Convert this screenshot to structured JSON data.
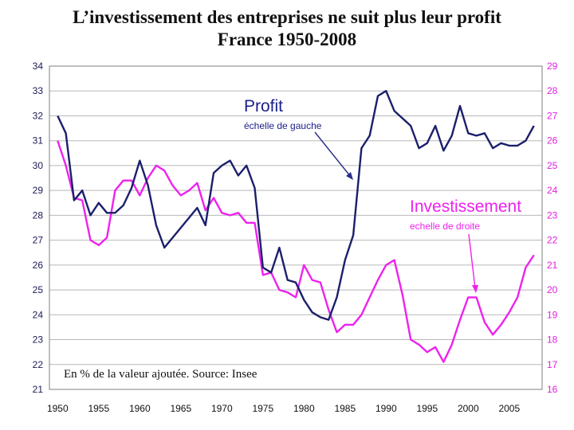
{
  "title_line1": "L’investissement des entreprises ne suit plus leur profit",
  "title_line2": "France 1950-2008",
  "colors": {
    "profit": "#1b1f6b",
    "investissement": "#ee22ee",
    "left_axis": "#1a1a55",
    "right_axis": "#e020e0",
    "grid": "#b8b8b8"
  },
  "chart_data": {
    "type": "line",
    "x_ticks": [
      1950,
      1955,
      1960,
      1965,
      1970,
      1975,
      1980,
      1985,
      1990,
      1995,
      2000,
      2005
    ],
    "x_tick_labels": [
      "1950",
      "1955",
      "1960",
      "1965",
      "1970",
      "1975",
      "1980",
      "1985",
      "1990",
      "1995",
      "2000",
      "2005"
    ],
    "xlim": [
      1949,
      2009
    ],
    "ylim_left": [
      21,
      34
    ],
    "ylim_right": [
      16,
      29
    ],
    "y_ticks_left": [
      21,
      22,
      23,
      24,
      25,
      26,
      27,
      28,
      29,
      30,
      31,
      32,
      33,
      34
    ],
    "y_ticks_right": [
      16,
      17,
      18,
      19,
      20,
      21,
      22,
      23,
      24,
      25,
      26,
      27,
      28,
      29
    ],
    "grid": "horizontal",
    "series": [
      {
        "name": "Profit",
        "axis": "left",
        "x": [
          1950,
          1951,
          1952,
          1953,
          1954,
          1955,
          1956,
          1957,
          1958,
          1959,
          1960,
          1961,
          1962,
          1963,
          1964,
          1965,
          1966,
          1967,
          1968,
          1969,
          1970,
          1971,
          1972,
          1973,
          1974,
          1975,
          1976,
          1977,
          1978,
          1979,
          1980,
          1981,
          1982,
          1983,
          1984,
          1985,
          1986,
          1987,
          1988,
          1989,
          1990,
          1991,
          1992,
          1993,
          1994,
          1995,
          1996,
          1997,
          1998,
          1999,
          2000,
          2001,
          2002,
          2003,
          2004,
          2005,
          2006,
          2007,
          2008
        ],
        "values": [
          32.0,
          31.3,
          28.6,
          29.0,
          28.0,
          28.5,
          28.1,
          28.1,
          28.4,
          29.1,
          30.2,
          29.2,
          27.6,
          26.7,
          27.1,
          27.5,
          27.9,
          28.3,
          27.6,
          29.7,
          30.0,
          30.2,
          29.6,
          30.0,
          29.1,
          25.9,
          25.7,
          26.7,
          25.4,
          25.3,
          24.6,
          24.1,
          23.9,
          23.8,
          24.7,
          26.2,
          27.2,
          30.7,
          31.2,
          32.8,
          33.0,
          32.2,
          31.9,
          31.6,
          30.7,
          30.9,
          31.6,
          30.6,
          31.2,
          32.4,
          31.3,
          31.2,
          31.3,
          30.7,
          30.9,
          30.8,
          30.8,
          31.0,
          31.6
        ]
      },
      {
        "name": "Investissement",
        "axis": "right",
        "x": [
          1950,
          1951,
          1952,
          1953,
          1954,
          1955,
          1956,
          1957,
          1958,
          1959,
          1960,
          1961,
          1962,
          1963,
          1964,
          1965,
          1966,
          1967,
          1968,
          1969,
          1970,
          1971,
          1972,
          1973,
          1974,
          1975,
          1976,
          1977,
          1978,
          1979,
          1980,
          1981,
          1982,
          1983,
          1984,
          1985,
          1986,
          1987,
          1988,
          1989,
          1990,
          1991,
          1992,
          1993,
          1994,
          1995,
          1996,
          1997,
          1998,
          1999,
          2000,
          2001,
          2002,
          2003,
          2004,
          2005,
          2006,
          2007,
          2008
        ],
        "values": [
          26.0,
          25.0,
          23.7,
          23.6,
          22.0,
          21.8,
          22.1,
          24.0,
          24.4,
          24.4,
          23.8,
          24.5,
          25.0,
          24.8,
          24.2,
          23.8,
          24.0,
          24.3,
          23.2,
          23.7,
          23.1,
          23.0,
          23.1,
          22.7,
          22.7,
          20.6,
          20.7,
          20.0,
          19.9,
          19.7,
          21.0,
          20.4,
          20.3,
          19.2,
          18.3,
          18.6,
          18.6,
          19.0,
          19.7,
          20.4,
          21.0,
          21.2,
          19.8,
          18.0,
          17.8,
          17.5,
          17.7,
          17.1,
          17.8,
          18.8,
          19.7,
          19.7,
          18.7,
          18.2,
          18.6,
          19.1,
          19.7,
          20.9,
          21.4
        ]
      }
    ],
    "annotations": [
      {
        "title": "Profit",
        "subtitle": "échelle de gauche"
      },
      {
        "title": "Investissement",
        "subtitle": "echelle de droite"
      }
    ],
    "source_note": "En % de la valeur ajoutée. Source: Insee"
  }
}
